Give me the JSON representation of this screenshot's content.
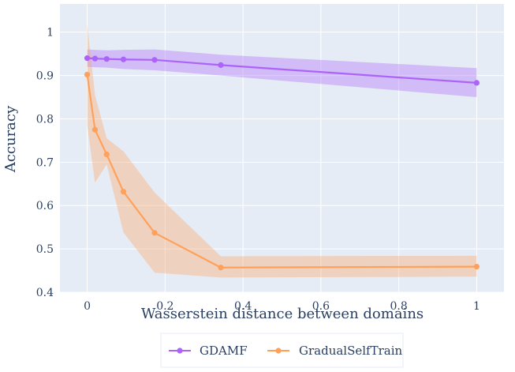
{
  "chart_data": {
    "type": "line",
    "title": "",
    "xlabel": "Wasserstein distance between domains",
    "ylabel": "Accuracy",
    "xlim": [
      -0.07,
      1.07
    ],
    "ylim": [
      0.4,
      1.065
    ],
    "x_ticks": [
      0,
      0.2,
      0.4,
      0.6,
      0.8,
      1
    ],
    "x_tick_labels": [
      "0",
      "0.2",
      "0.4",
      "0.6",
      "0.8",
      "1"
    ],
    "y_ticks": [
      0.4,
      0.5,
      0.6,
      0.7,
      0.8,
      0.9,
      1
    ],
    "y_tick_labels": [
      "0.4",
      "0.5",
      "0.6",
      "0.7",
      "0.8",
      "0.9",
      "1"
    ],
    "grid": true,
    "legend_position": "bottom-center",
    "plot_background": "#e5ecf6",
    "series": [
      {
        "name": "GDAMF",
        "color": "#ab63fa",
        "band_color": "rgba(171,99,250,0.35)",
        "x": [
          0,
          0.02,
          0.05,
          0.093,
          0.173,
          0.343,
          1
        ],
        "y": [
          0.94,
          0.939,
          0.938,
          0.937,
          0.936,
          0.924,
          0.883
        ],
        "upper": [
          0.96,
          0.959,
          0.958,
          0.959,
          0.96,
          0.948,
          0.917
        ],
        "lower": [
          0.92,
          0.919,
          0.918,
          0.915,
          0.912,
          0.9,
          0.85
        ]
      },
      {
        "name": "GradualSelfTrain",
        "color": "#ffa15a",
        "band_color": "rgba(255,161,90,0.35)",
        "x": [
          0,
          0.02,
          0.05,
          0.093,
          0.173,
          0.343,
          1
        ],
        "y": [
          0.902,
          0.775,
          0.718,
          0.632,
          0.537,
          0.457,
          0.459
        ],
        "upper": [
          1.018,
          0.855,
          0.755,
          0.725,
          0.63,
          0.483,
          0.484
        ],
        "lower": [
          0.785,
          0.653,
          0.695,
          0.538,
          0.445,
          0.434,
          0.436
        ]
      }
    ]
  }
}
